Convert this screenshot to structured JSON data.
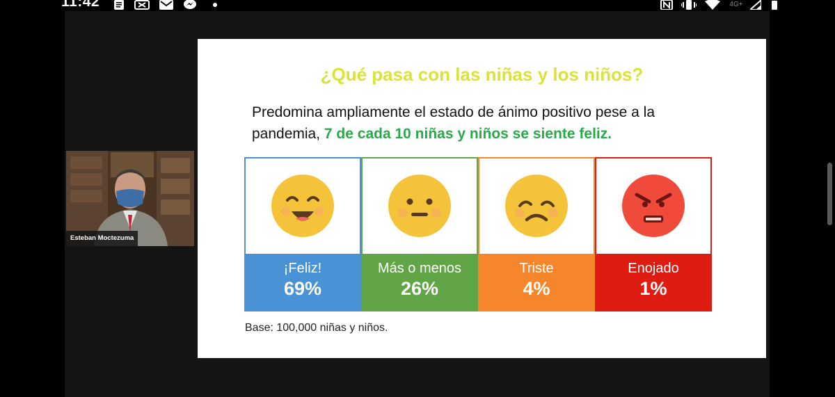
{
  "status_bar": {
    "time": "11:42",
    "left_icons": [
      "notes-icon",
      "video-icon",
      "gmail-icon",
      "messenger-icon",
      "dot-icon"
    ],
    "right_icons": [
      "nfc-icon",
      "vibrate-icon",
      "wifi-icon",
      "4g-icon",
      "signal-icon",
      "battery-icon"
    ],
    "network_label": "4G+"
  },
  "participant": {
    "name": "Esteban Moctezuma"
  },
  "slide": {
    "title": "¿Qué pasa con las niñas y los niños?",
    "desc_plain": "Predomina ampliamente el estado de ánimo positivo pese a la pandemia, ",
    "desc_highlight": "7 de cada 10 niñas y niños se siente feliz.",
    "moods": [
      {
        "label": "¡Feliz!",
        "pct": "69%",
        "color": "#4a92d6",
        "face": "happy-face-icon"
      },
      {
        "label": "Más o menos",
        "pct": "26%",
        "color": "#62a547",
        "face": "neutral-face-icon"
      },
      {
        "label": "Triste",
        "pct": "4%",
        "color": "#f5862b",
        "face": "sad-face-icon"
      },
      {
        "label": "Enojado",
        "pct": "1%",
        "color": "#df1c12",
        "face": "angry-face-icon"
      }
    ],
    "base_note": "Base: 100,000 niñas y niños."
  },
  "colors": {
    "title_yellow": "#dbe23a",
    "highlight_green": "#2aa84a",
    "face_yellow": "#f5c33a",
    "face_red": "#f04b3a"
  }
}
